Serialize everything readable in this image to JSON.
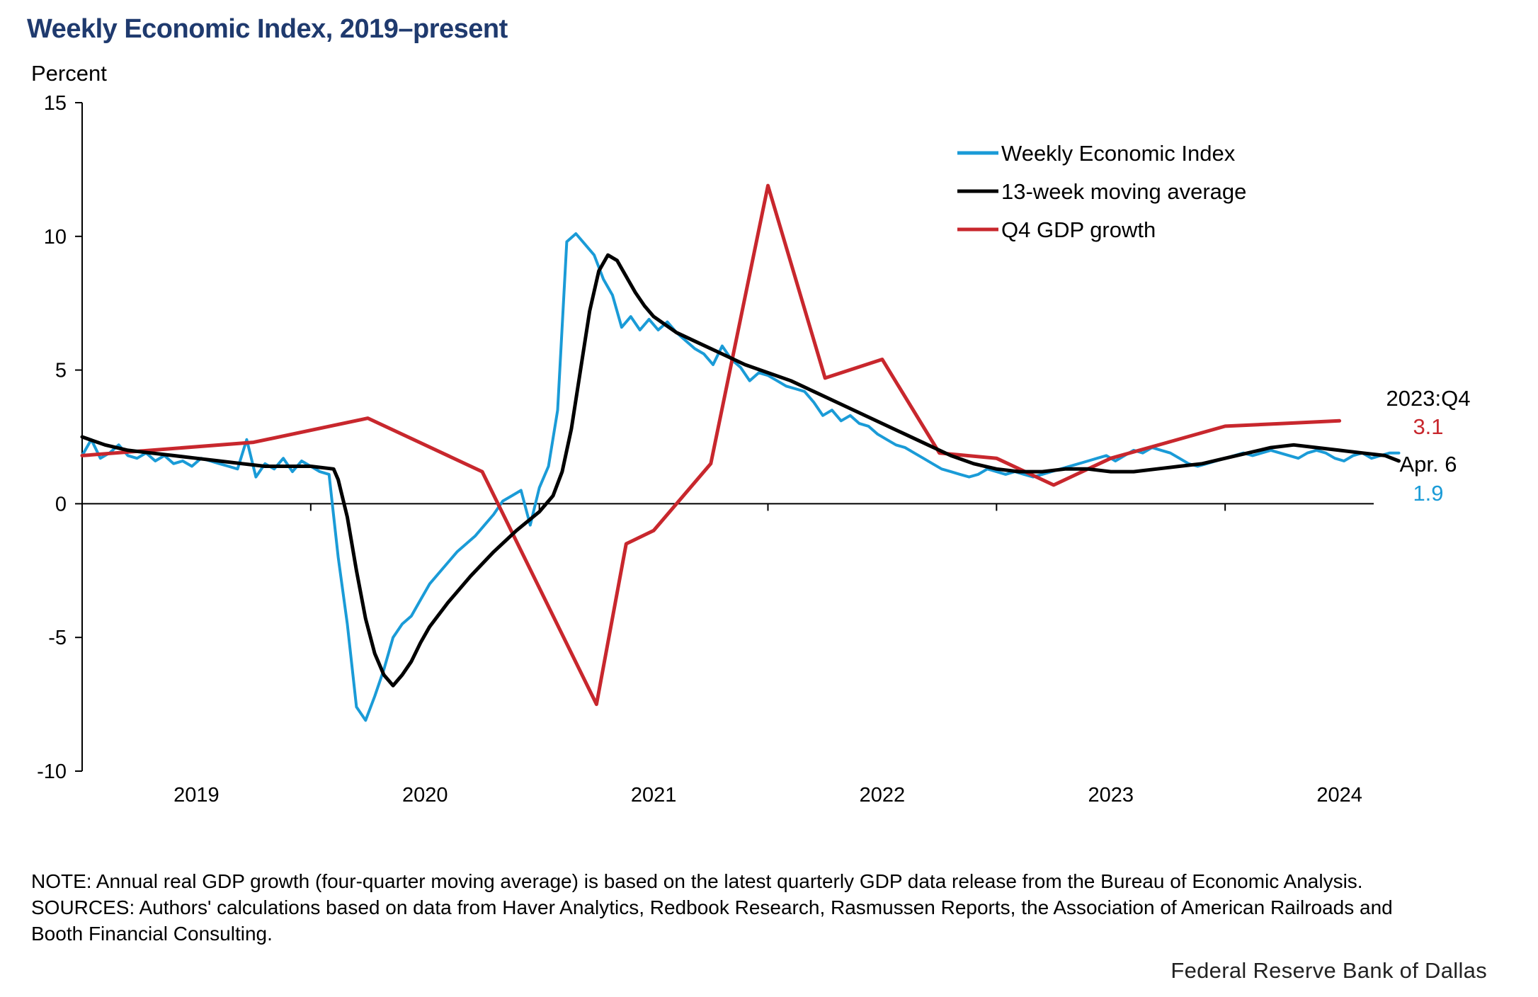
{
  "title": "Weekly Economic Index, 2019–present",
  "notes": {
    "note": "NOTE: Annual real GDP growth (four-quarter moving average) is based on the latest quarterly GDP data release from the Bureau of Economic Analysis.",
    "sources": "SOURCES: Authors' calculations based on data from Haver Analytics, Redbook Research, Rasmussen Reports, the Association of American Railroads and Booth Financial Consulting."
  },
  "source_credit": "Federal Reserve Bank of Dallas",
  "chart_data": {
    "type": "line",
    "ylabel": "Percent",
    "xlabel": "",
    "xlim": [
      2018.5,
      2024.15
    ],
    "ylim": [
      -10,
      15
    ],
    "yticks": [
      15,
      10,
      5,
      0,
      -5,
      -10
    ],
    "xticks": [
      2019,
      2020,
      2021,
      2022,
      2023,
      2024
    ],
    "legend_position": "top-right",
    "grid": false,
    "series": [
      {
        "name": "Weekly Economic Index",
        "color": "#1a9bd7",
        "x": [
          2018.5,
          2018.54,
          2018.58,
          2018.62,
          2018.66,
          2018.7,
          2018.74,
          2018.78,
          2018.82,
          2018.86,
          2018.9,
          2018.94,
          2018.98,
          2019.02,
          2019.06,
          2019.1,
          2019.14,
          2019.18,
          2019.22,
          2019.26,
          2019.3,
          2019.34,
          2019.38,
          2019.42,
          2019.46,
          2019.5,
          2019.54,
          2019.58,
          2019.62,
          2019.66,
          2019.7,
          2019.74,
          2019.78,
          2019.82,
          2019.86,
          2019.9,
          2019.94,
          2019.98,
          2020.02,
          2020.06,
          2020.1,
          2020.14,
          2020.18,
          2020.22,
          2020.26,
          2020.3,
          2020.34,
          2020.38,
          2020.42,
          2020.46,
          2020.5,
          2020.54,
          2020.58,
          2020.62,
          2020.66,
          2020.7,
          2020.74,
          2020.78,
          2020.82,
          2020.86,
          2020.9,
          2020.94,
          2020.98,
          2021.02,
          2021.06,
          2021.1,
          2021.14,
          2021.18,
          2021.22,
          2021.26,
          2021.3,
          2021.34,
          2021.38,
          2021.42,
          2021.46,
          2021.5,
          2021.54,
          2021.58,
          2021.62,
          2021.66,
          2021.7,
          2021.74,
          2021.78,
          2021.82,
          2021.86,
          2021.9,
          2021.94,
          2021.98,
          2022.02,
          2022.06,
          2022.1,
          2022.14,
          2022.18,
          2022.22,
          2022.26,
          2022.3,
          2022.34,
          2022.38,
          2022.42,
          2022.46,
          2022.5,
          2022.54,
          2022.58,
          2022.62,
          2022.66,
          2022.7,
          2022.74,
          2022.78,
          2022.82,
          2022.86,
          2022.9,
          2022.94,
          2022.98,
          2023.02,
          2023.06,
          2023.1,
          2023.14,
          2023.18,
          2023.22,
          2023.26,
          2023.3,
          2023.34,
          2023.38,
          2023.42,
          2023.46,
          2023.5,
          2023.54,
          2023.58,
          2023.62,
          2023.66,
          2023.7,
          2023.74,
          2023.78,
          2023.82,
          2023.86,
          2023.9,
          2023.94,
          2023.98,
          2024.02,
          2024.06,
          2024.1,
          2024.14,
          2024.18,
          2024.22,
          2024.26
        ],
        "values": [
          1.8,
          2.4,
          1.7,
          1.9,
          2.2,
          1.8,
          1.7,
          1.9,
          1.6,
          1.8,
          1.5,
          1.6,
          1.4,
          1.7,
          1.6,
          1.5,
          1.4,
          1.3,
          2.4,
          1.0,
          1.5,
          1.3,
          1.7,
          1.2,
          1.6,
          1.4,
          1.2,
          1.1,
          -2.0,
          -4.5,
          -7.6,
          -8.1,
          -7.2,
          -6.2,
          -5.0,
          -4.5,
          -4.2,
          -3.6,
          -3.0,
          -2.6,
          -2.2,
          -1.8,
          -1.5,
          -1.2,
          -0.8,
          -0.4,
          0.1,
          0.3,
          0.5,
          -0.8,
          0.6,
          1.4,
          3.5,
          9.8,
          10.1,
          9.7,
          9.3,
          8.4,
          7.8,
          6.6,
          7.0,
          6.5,
          6.9,
          6.5,
          6.8,
          6.4,
          6.1,
          5.8,
          5.6,
          5.2,
          5.9,
          5.4,
          5.1,
          4.6,
          4.9,
          4.8,
          4.6,
          4.4,
          4.3,
          4.2,
          3.8,
          3.3,
          3.5,
          3.1,
          3.3,
          3.0,
          2.9,
          2.6,
          2.4,
          2.2,
          2.1,
          1.9,
          1.7,
          1.5,
          1.3,
          1.2,
          1.1,
          1.0,
          1.1,
          1.3,
          1.2,
          1.1,
          1.2,
          1.1,
          1.0,
          1.1,
          1.2,
          1.3,
          1.4,
          1.5,
          1.6,
          1.7,
          1.8,
          1.6,
          1.8,
          2.0,
          1.9,
          2.1,
          2.0,
          1.9,
          1.7,
          1.5,
          1.4,
          1.5,
          1.6,
          1.7,
          1.8,
          1.9,
          1.8,
          1.9,
          2.0,
          1.9,
          1.8,
          1.7,
          1.9,
          2.0,
          1.9,
          1.7,
          1.6,
          1.8,
          1.9,
          1.7,
          1.8,
          1.9,
          1.9
        ],
        "end_label": "Apr. 6",
        "end_value": "1.9"
      },
      {
        "name": "13-week moving average",
        "color": "#000000",
        "x": [
          2018.5,
          2018.6,
          2018.7,
          2018.8,
          2018.9,
          2019.0,
          2019.1,
          2019.2,
          2019.3,
          2019.4,
          2019.5,
          2019.6,
          2019.62,
          2019.66,
          2019.7,
          2019.74,
          2019.78,
          2019.82,
          2019.86,
          2019.9,
          2019.94,
          2019.98,
          2020.02,
          2020.1,
          2020.2,
          2020.3,
          2020.4,
          2020.5,
          2020.56,
          2020.6,
          2020.64,
          2020.68,
          2020.72,
          2020.76,
          2020.8,
          2020.84,
          2020.88,
          2020.92,
          2020.96,
          2021.0,
          2021.1,
          2021.2,
          2021.3,
          2021.4,
          2021.5,
          2021.6,
          2021.7,
          2021.8,
          2021.9,
          2022.0,
          2022.1,
          2022.2,
          2022.3,
          2022.4,
          2022.5,
          2022.6,
          2022.7,
          2022.8,
          2022.9,
          2023.0,
          2023.1,
          2023.2,
          2023.3,
          2023.4,
          2023.5,
          2023.6,
          2023.7,
          2023.8,
          2023.9,
          2024.0,
          2024.1,
          2024.2,
          2024.26
        ],
        "values": [
          2.5,
          2.2,
          2.0,
          1.9,
          1.8,
          1.7,
          1.6,
          1.5,
          1.4,
          1.4,
          1.4,
          1.3,
          0.9,
          -0.5,
          -2.5,
          -4.3,
          -5.6,
          -6.4,
          -6.8,
          -6.4,
          -5.9,
          -5.2,
          -4.6,
          -3.7,
          -2.7,
          -1.8,
          -1.0,
          -0.3,
          0.3,
          1.2,
          2.8,
          5.0,
          7.2,
          8.7,
          9.3,
          9.1,
          8.5,
          7.9,
          7.4,
          7.0,
          6.4,
          6.0,
          5.6,
          5.2,
          4.9,
          4.6,
          4.2,
          3.8,
          3.4,
          3.0,
          2.6,
          2.2,
          1.8,
          1.5,
          1.3,
          1.2,
          1.2,
          1.3,
          1.3,
          1.2,
          1.2,
          1.3,
          1.4,
          1.5,
          1.7,
          1.9,
          2.1,
          2.2,
          2.1,
          2.0,
          1.9,
          1.8,
          1.6
        ]
      },
      {
        "name": "Q4 GDP growth",
        "color": "#c8272d",
        "x": [
          2018.5,
          2019.25,
          2019.75,
          2020.25,
          2020.75,
          2020.88,
          2021.0,
          2021.25,
          2021.5,
          2021.75,
          2022.0,
          2022.25,
          2022.5,
          2022.75,
          2023.0,
          2023.25,
          2023.5,
          2023.75,
          2024.0
        ],
        "values": [
          1.8,
          2.3,
          3.2,
          1.2,
          -7.5,
          -1.5,
          -1.0,
          1.5,
          11.9,
          4.7,
          5.4,
          1.9,
          1.7,
          0.7,
          1.7,
          2.3,
          2.9,
          3.0,
          3.1
        ],
        "end_label": "2023:Q4",
        "end_value": "3.1"
      }
    ]
  }
}
